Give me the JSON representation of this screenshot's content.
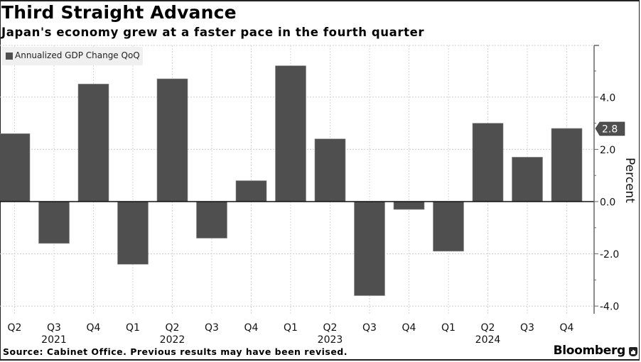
{
  "header": {
    "title": "Third Straight Advance",
    "subtitle": "Japan's economy grew at a faster pace in the fourth quarter"
  },
  "legend": {
    "label": "Annualized GDP Change QoQ",
    "color": "#4f4f4f"
  },
  "footer": {
    "source": "Source: Cabinet Office. Previous results may have been revised.",
    "brand": "Bloomberg",
    "brand_icon": "bloomberg-chart-icon"
  },
  "chart_data": {
    "type": "bar",
    "title": "Third Straight Advance",
    "subtitle": "Japan's economy grew at a faster pace in the fourth quarter",
    "xlabel": "",
    "ylabel": "Percent",
    "ylim": [
      -4.4,
      6.0
    ],
    "yticks": [
      -4.0,
      -2.0,
      0.0,
      2.0,
      4.0
    ],
    "ytick_labels": [
      "-4.0",
      "-2.0",
      "0.0",
      "2.0",
      "4.0"
    ],
    "grid": true,
    "legend_position": "top-left",
    "bar_color": "#4f4f4f",
    "categories": [
      "Q2 2021",
      "Q3 2021",
      "Q4 2021",
      "Q1 2022",
      "Q2 2022",
      "Q3 2022",
      "Q4 2022",
      "Q1 2023",
      "Q2 2023",
      "Q3 2023",
      "Q4 2023",
      "Q1 2024",
      "Q2 2024",
      "Q3 2024",
      "Q4 2024"
    ],
    "quarter_labels": [
      "Q2",
      "Q3",
      "Q4",
      "Q1",
      "Q2",
      "Q3",
      "Q4",
      "Q1",
      "Q2",
      "Q3",
      "Q4",
      "Q1",
      "Q2",
      "Q3",
      "Q4"
    ],
    "year_labels": [
      {
        "index": 1,
        "label": "2021"
      },
      {
        "index": 4,
        "label": "2022"
      },
      {
        "index": 8,
        "label": "2023"
      },
      {
        "index": 12,
        "label": "2024"
      }
    ],
    "series": [
      {
        "name": "Annualized GDP Change QoQ",
        "values": [
          2.6,
          -1.6,
          4.5,
          -2.4,
          4.7,
          -1.4,
          0.8,
          5.2,
          2.4,
          -3.6,
          -0.3,
          -1.9,
          3.0,
          1.7,
          2.8
        ]
      }
    ],
    "last_value_label": "2.8"
  }
}
